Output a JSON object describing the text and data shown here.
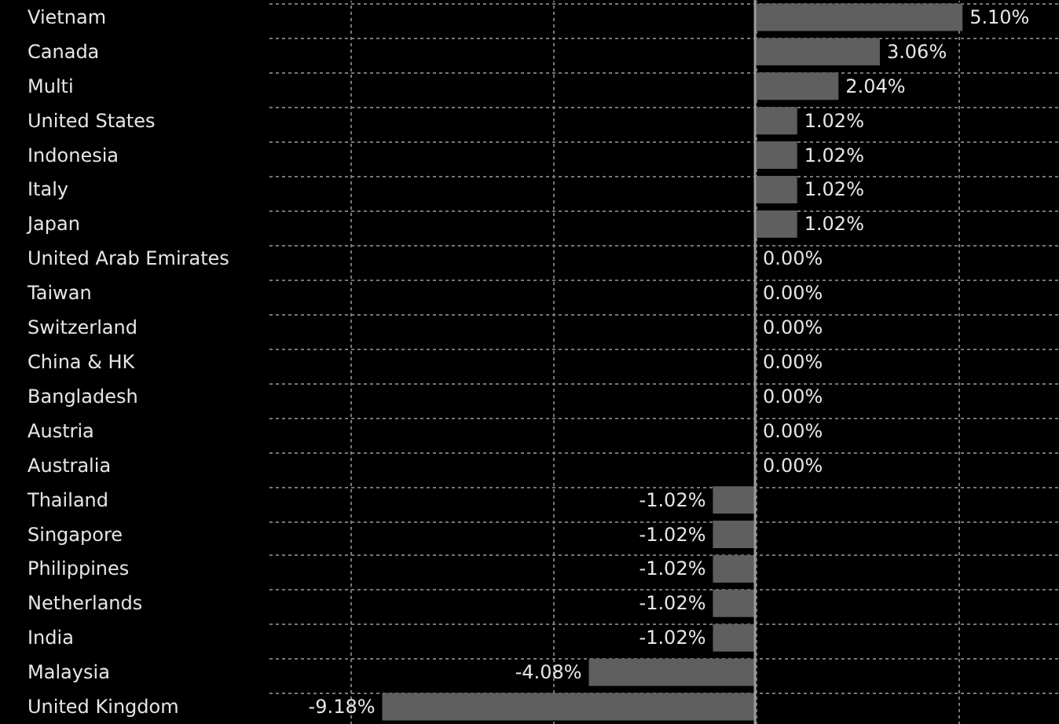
{
  "chart_data": {
    "type": "bar",
    "orientation": "horizontal",
    "categories": [
      "Vietnam",
      "Canada",
      "Multi",
      "United States",
      "Indonesia",
      "Italy",
      "Japan",
      "United Arab Emirates",
      "Taiwan",
      "Switzerland",
      "China & HK",
      "Bangladesh",
      "Austria",
      "Australia",
      "Thailand",
      "Singapore",
      "Philippines",
      "Netherlands",
      "India",
      "Malaysia",
      "United Kingdom"
    ],
    "values": [
      5.1,
      3.06,
      2.04,
      1.02,
      1.02,
      1.02,
      1.02,
      0,
      0,
      0,
      0,
      0,
      0,
      0,
      -1.02,
      -1.02,
      -1.02,
      -1.02,
      -1.02,
      -4.08,
      -9.18
    ],
    "value_labels": [
      "5.10%",
      "3.06%",
      "2.04%",
      "1.02%",
      "1.02%",
      "1.02%",
      "1.02%",
      "0.00%",
      "0.00%",
      "0.00%",
      "0.00%",
      "0.00%",
      "0.00%",
      "0.00%",
      "-1.02%",
      "-1.02%",
      "-1.02%",
      "-1.02%",
      "-1.02%",
      "-4.08%",
      "-9.18%"
    ],
    "color": "#5f5f5f",
    "xlim": [
      -12,
      7.5
    ],
    "xticks": [
      {
        "value": -10,
        "label": null
      },
      {
        "value": -5,
        "label": null
      },
      {
        "value": 0,
        "label": null
      },
      {
        "value": 5,
        "label": null
      }
    ],
    "ref_lines": [
      {
        "axis": "x",
        "value": 0,
        "color": "#9a9a9a"
      }
    ],
    "grid": true,
    "tick_labels": "y"
  }
}
